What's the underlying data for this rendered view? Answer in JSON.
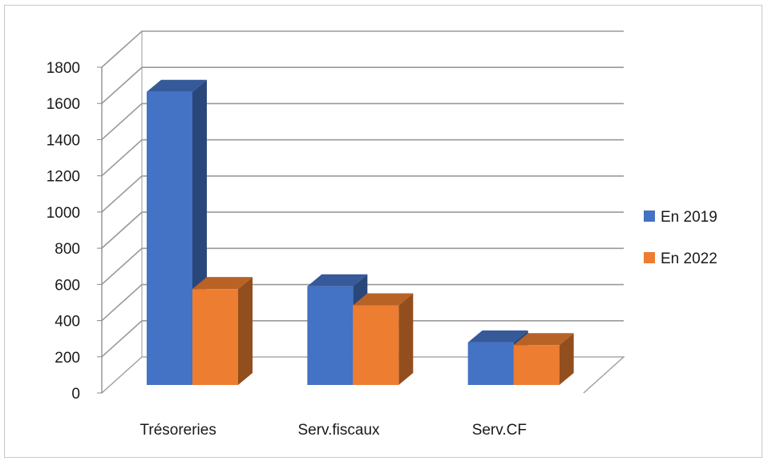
{
  "chart_data": {
    "type": "bar",
    "title": "",
    "xlabel": "",
    "ylabel": "",
    "categories": [
      "Trésoreries",
      "Serv.fiscaux",
      "Serv.CF"
    ],
    "series": [
      {
        "name": "En 2019",
        "values": [
          1620,
          545,
          235
        ]
      },
      {
        "name": "En 2022",
        "values": [
          530,
          440,
          220
        ]
      }
    ],
    "ylim": [
      0,
      1800
    ],
    "ytick_labels": [
      "0",
      "200",
      "400",
      "600",
      "800",
      "1000",
      "1200",
      "1400",
      "1600",
      "1800"
    ],
    "grid": true,
    "legend_position": "right",
    "style": "3d-clustered-column"
  },
  "colors": {
    "series": [
      "#4472c4",
      "#ed7d31"
    ],
    "gridline": "#999999",
    "axis": "#888888"
  }
}
